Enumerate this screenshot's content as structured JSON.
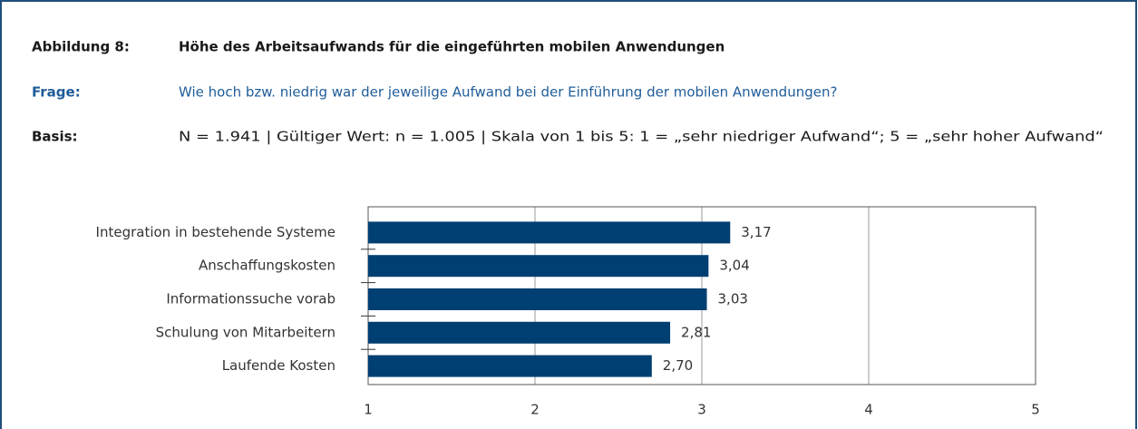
{
  "header": {
    "figure": "Abbildung 8:",
    "title": "Höhe des Arbeitsaufwands für die eingeführten mobilen Anwendungen",
    "question_label": "Frage:",
    "question": "Wie hoch bzw. niedrig war der jeweilige Aufwand bei der Einführung der mobilen Anwendungen?",
    "basis_label": "Basis:",
    "basis": "N = 1.941 | Gültiger Wert: n = 1.005 | Skala von 1 bis 5: 1 = „sehr niedriger Aufwand“; 5 = „sehr hoher Aufwand“"
  },
  "chart_data": {
    "type": "bar",
    "orientation": "horizontal",
    "categories": [
      "Integration in bestehende Systeme",
      "Anschaffungskosten",
      "Informationssuche vorab",
      "Schulung von Mitarbeitern",
      "Laufende Kosten"
    ],
    "values": [
      3.17,
      3.04,
      3.03,
      2.81,
      2.7
    ],
    "value_labels": [
      "3,17",
      "3,04",
      "3,03",
      "2,81",
      "2,70"
    ],
    "color": "#003f72",
    "xlim": [
      1,
      5
    ],
    "xticks": [
      1,
      2,
      3,
      4,
      5
    ],
    "grid": true
  }
}
